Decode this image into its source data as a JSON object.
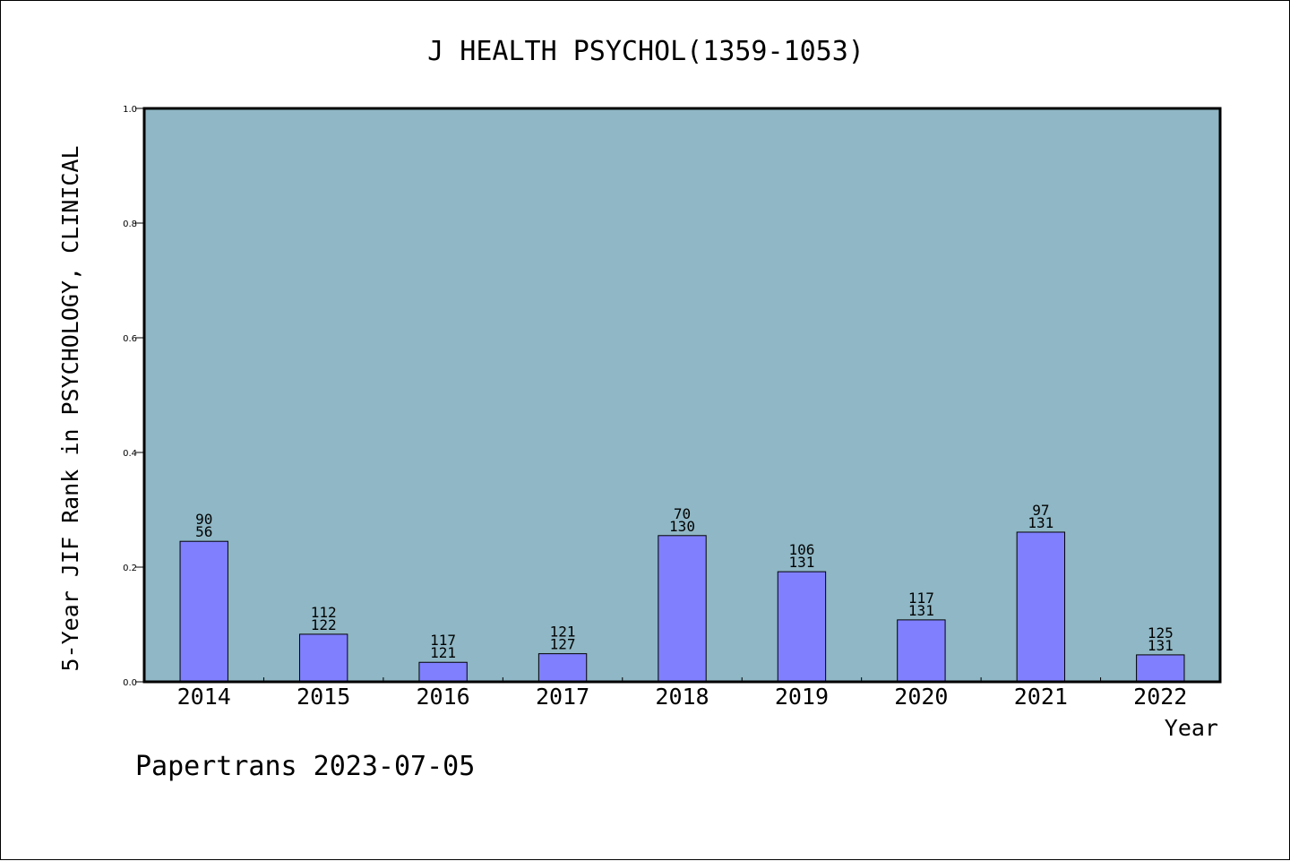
{
  "chart_data": {
    "type": "bar",
    "title": "J HEALTH PSYCHOL(1359-1053)",
    "xlabel": "Year",
    "ylabel": "5-Year JIF Rank in PSYCHOLOGY, CLINICAL",
    "ylim": [
      0,
      1.0
    ],
    "yticks": [
      "0.0",
      "0.2",
      "0.4",
      "0.6",
      "0.8",
      "1.0"
    ],
    "categories": [
      "2014",
      "2015",
      "2016",
      "2017",
      "2018",
      "2019",
      "2020",
      "2021",
      "2022"
    ],
    "values": [
      0.245,
      0.083,
      0.034,
      0.049,
      0.255,
      0.192,
      0.108,
      0.261,
      0.047
    ],
    "labels": [
      [
        "90",
        "56"
      ],
      [
        "112",
        "122"
      ],
      [
        "117",
        "121"
      ],
      [
        "121",
        "127"
      ],
      [
        "70",
        "130"
      ],
      [
        "106",
        "131"
      ],
      [
        "117",
        "131"
      ],
      [
        "97",
        "131"
      ],
      [
        "125",
        "131"
      ]
    ],
    "grid": false,
    "colors": {
      "plot_bg": "#8fb7c5",
      "bar": "#8080ff",
      "bar_edge": "#000000"
    }
  },
  "footer": "Papertrans 2023-07-05"
}
